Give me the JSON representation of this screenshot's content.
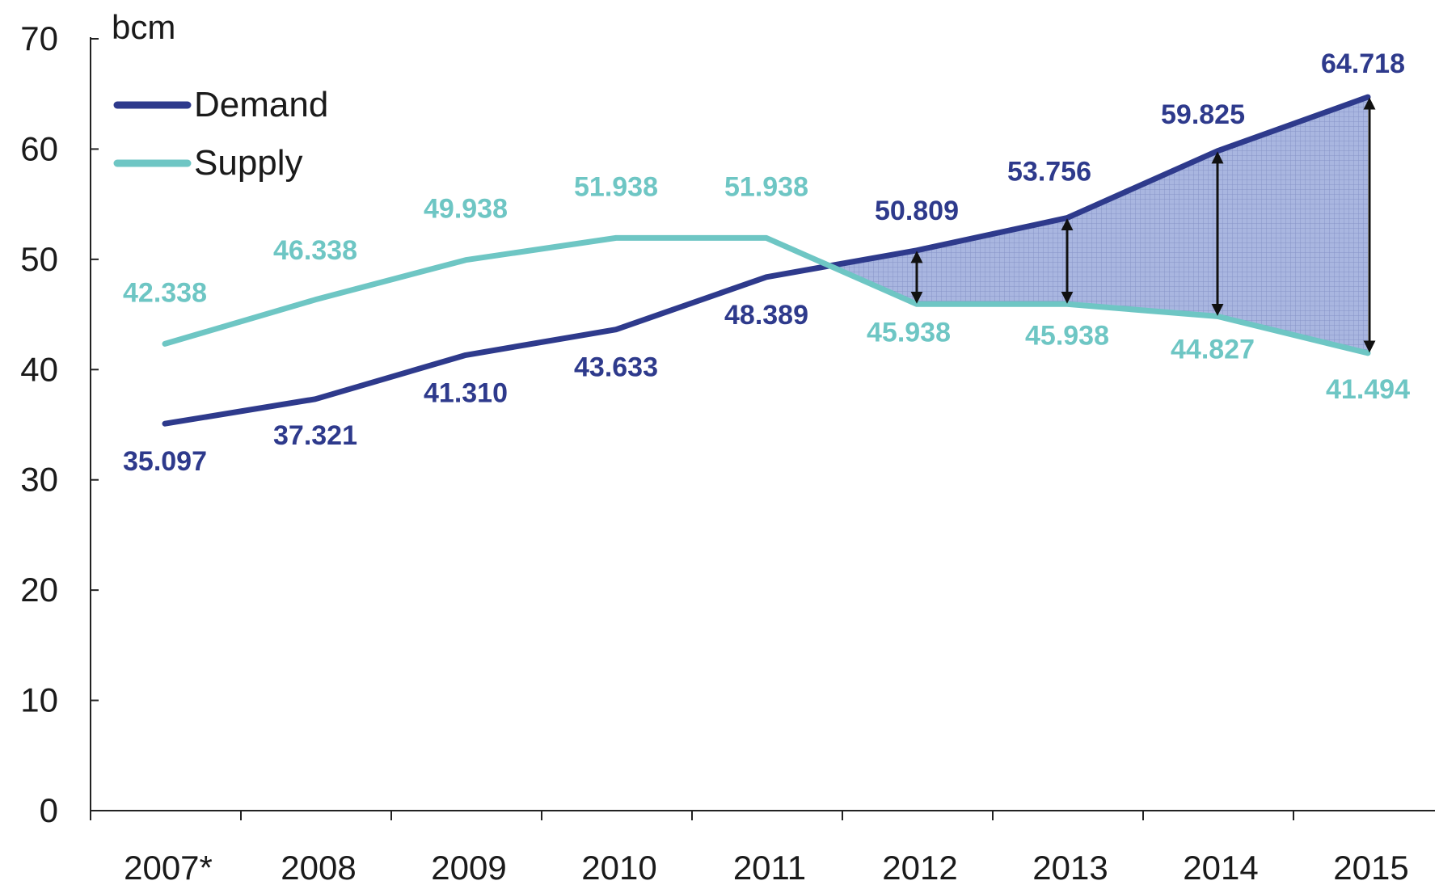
{
  "chart_data": {
    "type": "line",
    "unit_label": "bcm",
    "categories": [
      "2007*",
      "2008",
      "2009",
      "2010",
      "2011",
      "2012",
      "2013",
      "2014",
      "2015"
    ],
    "ylim": [
      0,
      70
    ],
    "y_ticks": [
      0,
      10,
      20,
      30,
      40,
      50,
      60,
      70
    ],
    "grid": false,
    "legend_position": "top-left",
    "series": [
      {
        "name": "Demand",
        "color": "#2e3a8c",
        "values": [
          35.097,
          37.321,
          41.31,
          43.633,
          48.389,
          50.809,
          53.756,
          59.825,
          64.718
        ],
        "labels": [
          "35.097",
          "37.321",
          "41.310",
          "43.633",
          "48.389",
          "50.809",
          "53.756",
          "59.825",
          "64.718"
        ]
      },
      {
        "name": "Supply",
        "color": "#6ec6c4",
        "values": [
          42.338,
          46.338,
          49.938,
          51.938,
          51.938,
          45.938,
          45.938,
          44.827,
          41.494
        ],
        "labels": [
          "42.338",
          "46.338",
          "49.938",
          "51.938",
          "51.938",
          "45.938",
          "45.938",
          "44.827",
          "41.494"
        ]
      }
    ],
    "shaded_gap": {
      "from_category": "2011",
      "to_category": "2015",
      "fill": "#a9b6e0"
    },
    "gap_arrows": [
      "2012",
      "2013",
      "2014",
      "2015"
    ]
  }
}
